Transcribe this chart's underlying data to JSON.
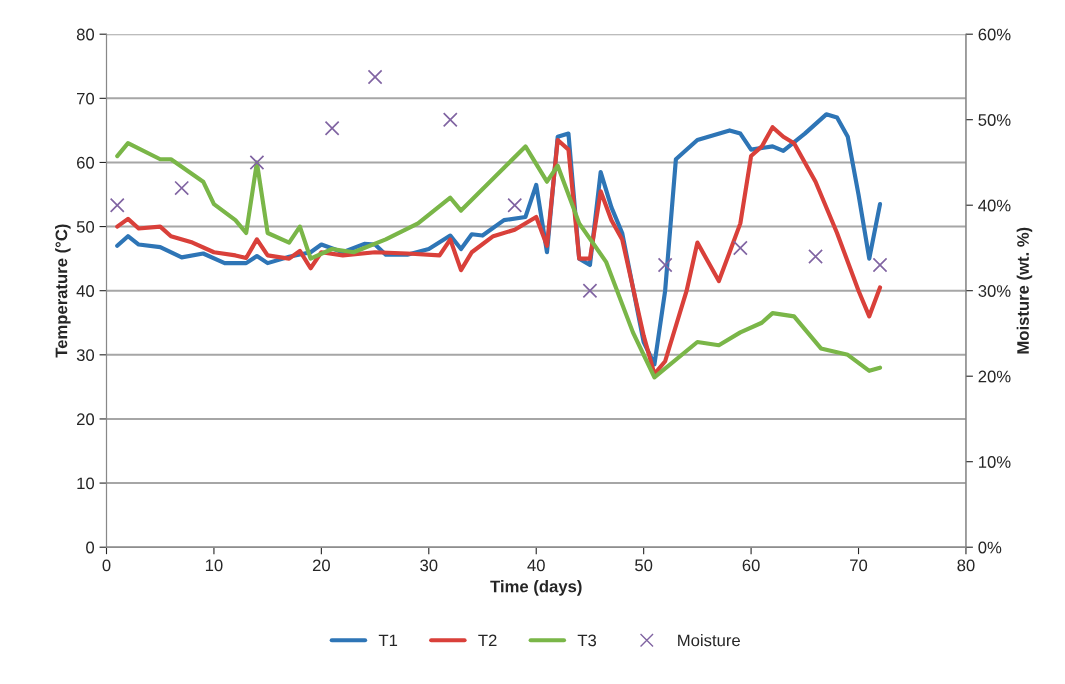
{
  "chart_data": {
    "type": "line",
    "xlabel": "Time (days)",
    "ylabel": "Temperature (°C)",
    "y2label": "Moisture (wt. %)",
    "xlim": [
      0,
      80
    ],
    "xticks": [
      0,
      10,
      20,
      30,
      40,
      50,
      60,
      70,
      80
    ],
    "ylim": [
      0,
      80
    ],
    "yticks": [
      0,
      10,
      20,
      30,
      40,
      50,
      60,
      70,
      80
    ],
    "y2lim": [
      0,
      60
    ],
    "y2ticks": [
      {
        "value": 0,
        "label": "0%"
      },
      {
        "value": 10,
        "label": "10%"
      },
      {
        "value": 20,
        "label": "20%"
      },
      {
        "value": 30,
        "label": "30%"
      },
      {
        "value": 40,
        "label": "40%"
      },
      {
        "value": 50,
        "label": "50%"
      },
      {
        "value": 60,
        "label": "60%"
      }
    ],
    "grid": "y",
    "legend": "bottom",
    "line_style": "solid",
    "series": [
      {
        "name": "T1",
        "color": "#2e75b6",
        "type": "line",
        "marker": "none",
        "x": [
          1,
          2,
          3,
          5,
          7,
          9,
          11,
          13,
          14,
          15,
          17,
          19,
          20,
          22,
          24,
          25,
          26,
          28,
          30,
          32,
          33,
          34,
          35,
          37,
          39,
          40,
          41,
          42,
          43,
          44,
          45,
          46,
          47,
          48,
          50,
          51,
          52,
          53,
          55,
          58,
          59,
          60,
          62,
          63,
          65,
          67,
          68,
          69,
          70,
          71,
          72
        ],
        "values": [
          47,
          48.5,
          47.2,
          46.8,
          45.2,
          45.8,
          44.3,
          44.3,
          45.4,
          44.3,
          45.3,
          46,
          47.2,
          46,
          47.3,
          47.2,
          45.6,
          45.6,
          46.5,
          48.6,
          46.5,
          48.8,
          48.6,
          51,
          51.5,
          56.5,
          46,
          64,
          64.5,
          45,
          44,
          58.5,
          53,
          49,
          32,
          28.5,
          40,
          60.5,
          63.5,
          65,
          64.5,
          62,
          62.5,
          61.8,
          64.5,
          67.5,
          67,
          64,
          55,
          45,
          53.5
        ]
      },
      {
        "name": "T2",
        "color": "#d9403a",
        "type": "line",
        "marker": "none",
        "x": [
          1,
          2,
          3,
          5,
          6,
          8,
          10,
          12,
          13,
          14,
          15,
          17,
          18,
          19,
          20,
          22,
          25,
          28,
          31,
          32,
          33,
          34,
          36,
          38,
          40,
          41,
          42,
          43,
          44,
          45,
          46,
          47,
          48,
          50,
          51,
          52,
          54,
          55,
          57,
          59,
          60,
          61,
          62,
          63,
          64,
          66,
          68,
          70,
          71,
          72
        ],
        "values": [
          50,
          51.2,
          49.7,
          50,
          48.5,
          47.5,
          46,
          45.5,
          45.1,
          48,
          45.5,
          45,
          46.2,
          43.5,
          46,
          45.5,
          46,
          45.8,
          45.5,
          48,
          43.2,
          46,
          48.5,
          49.5,
          51.5,
          47,
          63.5,
          62,
          45,
          45,
          55.5,
          51,
          48,
          33,
          27,
          29,
          40,
          47.5,
          41.5,
          50.5,
          61,
          62.5,
          65.5,
          64,
          63,
          57,
          49,
          40,
          36,
          40.5
        ]
      },
      {
        "name": "T3",
        "color": "#7ab648",
        "type": "line",
        "marker": "none",
        "x": [
          1,
          2,
          5,
          6,
          9,
          10,
          12,
          13,
          14,
          15,
          17,
          18,
          19,
          21,
          23,
          26,
          29,
          32,
          33,
          37.5,
          39,
          41,
          42,
          44,
          46.5,
          49,
          51,
          55,
          57,
          59,
          61,
          62,
          64,
          66.5,
          69,
          71,
          72
        ],
        "values": [
          61,
          63,
          60.5,
          60.5,
          57,
          53.5,
          51,
          49,
          60,
          49,
          47.5,
          50,
          45,
          46.5,
          46,
          48,
          50.5,
          54.5,
          52.5,
          60,
          62.5,
          57,
          59.5,
          50.5,
          44.5,
          33.5,
          26.5,
          32,
          31.5,
          33.5,
          35,
          36.5,
          36,
          31,
          30,
          27.5,
          28
        ]
      },
      {
        "name": "Moisture",
        "color": "#8064a2",
        "type": "scatter",
        "marker": "cross",
        "axis": "y2",
        "x": [
          1,
          7,
          14,
          21,
          25,
          32,
          38,
          45,
          52,
          59,
          66,
          72
        ],
        "values": [
          40,
          42,
          45,
          49,
          55,
          50,
          40,
          30,
          33,
          35,
          34,
          33
        ]
      }
    ]
  }
}
